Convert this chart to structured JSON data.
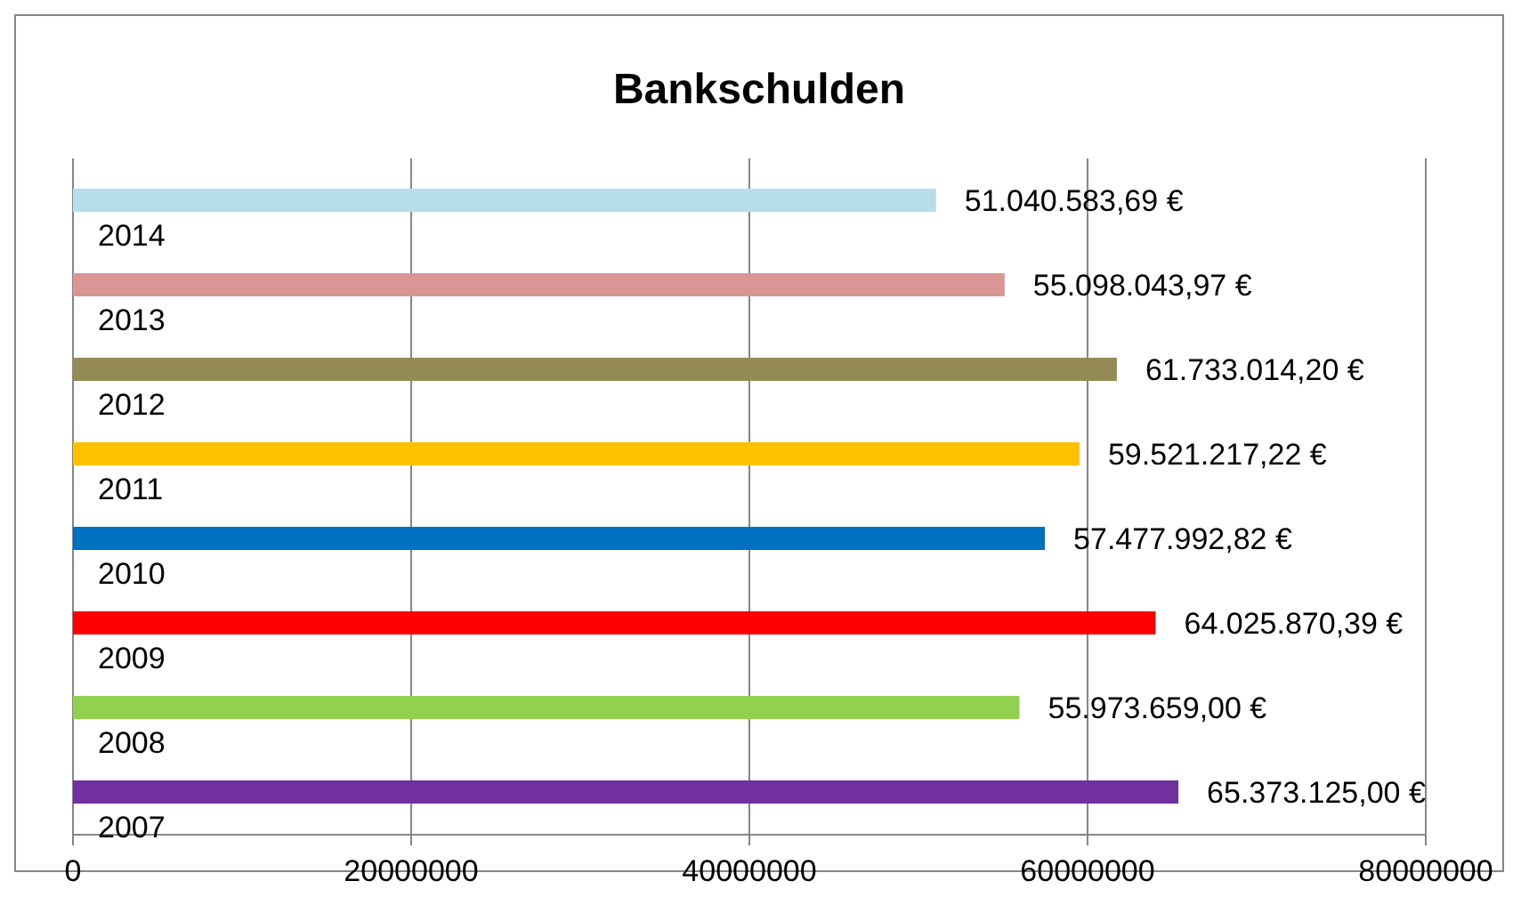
{
  "chart_data": {
    "type": "bar",
    "orientation": "horizontal",
    "title": "Bankschulden",
    "categories": [
      "2014",
      "2013",
      "2012",
      "2011",
      "2010",
      "2009",
      "2008",
      "2007"
    ],
    "values": [
      51040583.69,
      55098043.97,
      61733014.2,
      59521217.22,
      57477992.82,
      64025870.39,
      55973659.0,
      65373125.0
    ],
    "colors": [
      "#b7dde8",
      "#d99694",
      "#948a54",
      "#ffc000",
      "#0070c0",
      "#ff0000",
      "#92d050",
      "#7030a0"
    ],
    "value_labels": [
      "51.040.583,69 €",
      "55.098.043,97 €",
      "61.733.014,20 €",
      "59.521.217,22 €",
      "57.477.992,82 €",
      "64.025.870,39 €",
      "55.973.659,00 €",
      "65.373.125,00 €"
    ],
    "xlim": [
      0,
      80000000
    ],
    "xticks": [
      0,
      20000000,
      40000000,
      60000000,
      80000000
    ],
    "grid": "x"
  }
}
